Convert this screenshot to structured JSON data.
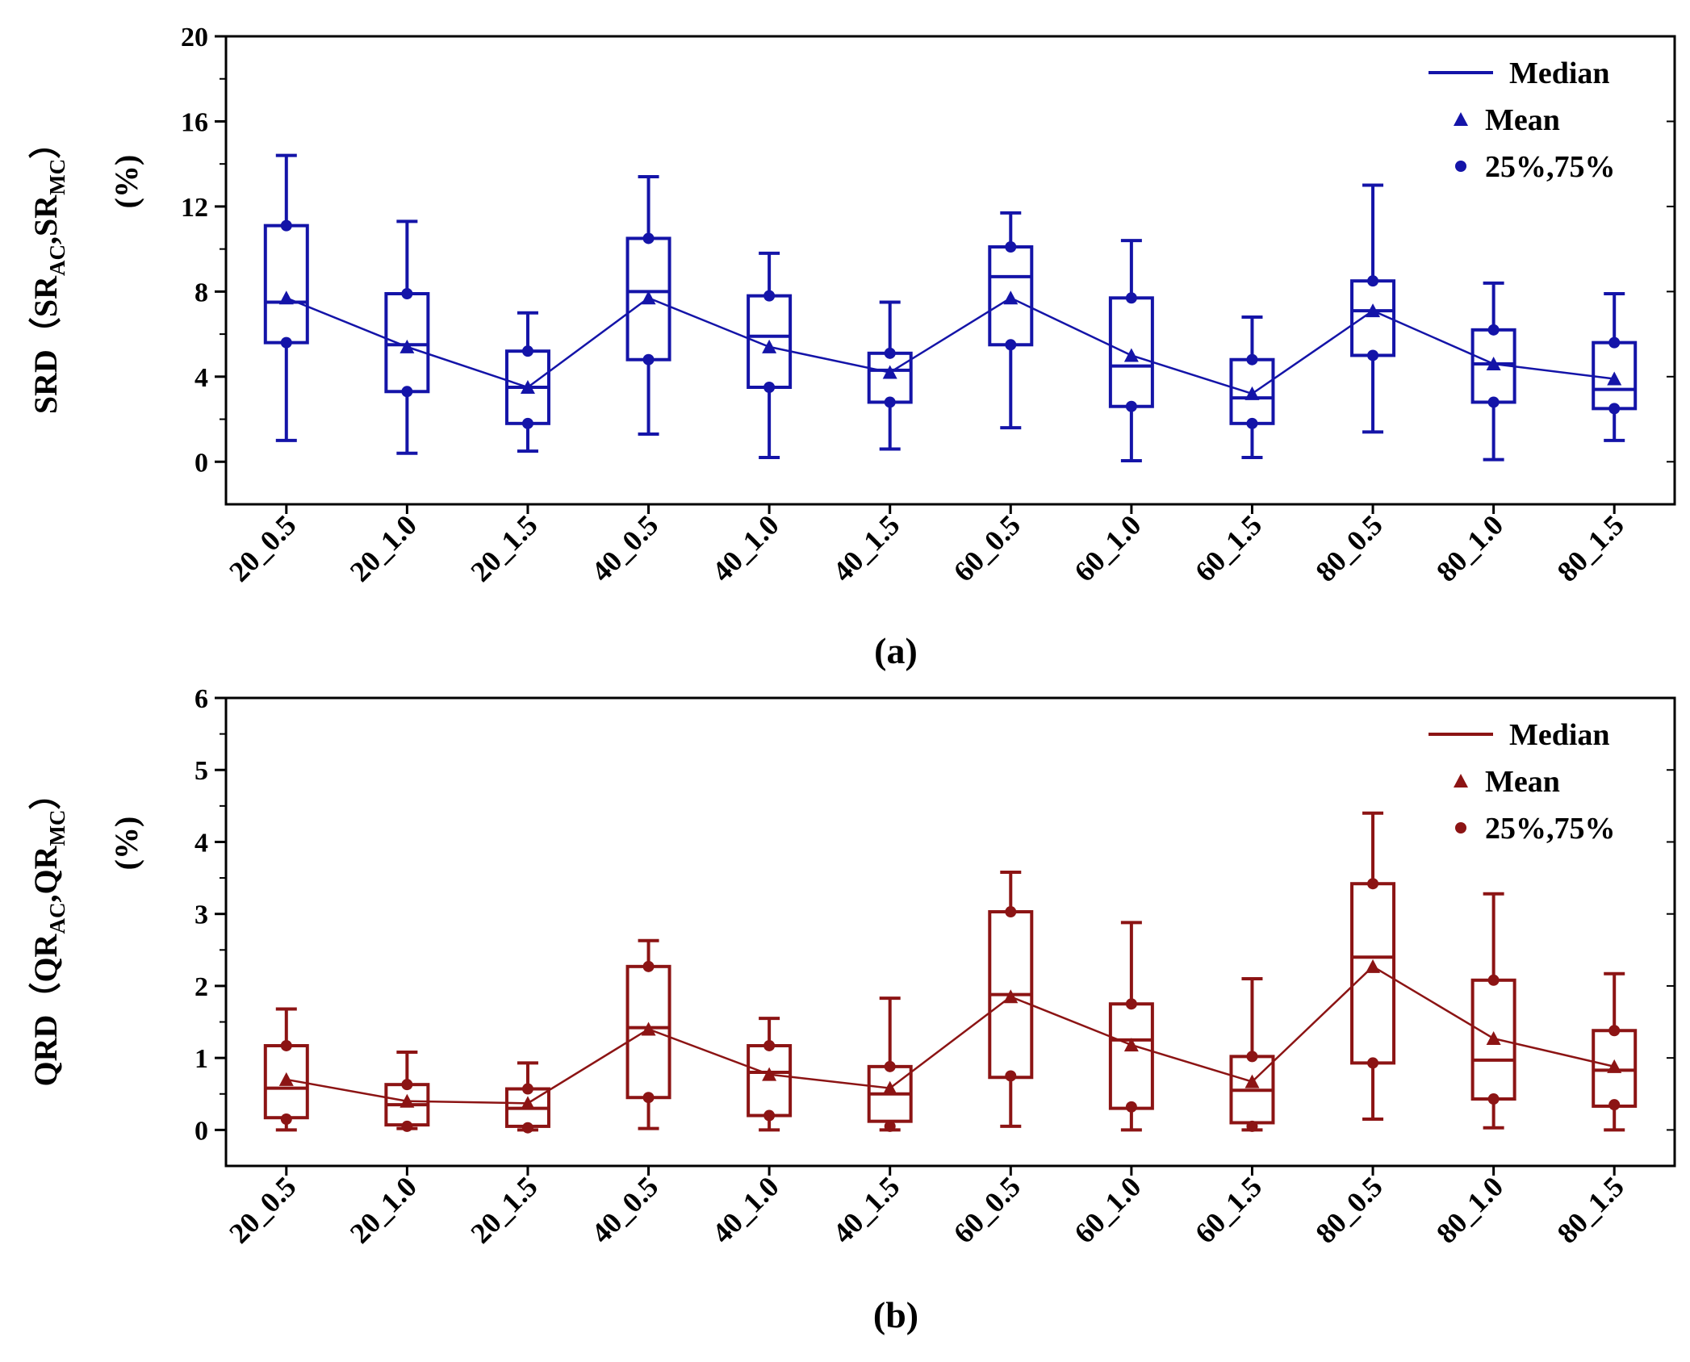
{
  "chart_data": [
    {
      "type": "box",
      "panel_label": "(a)",
      "ylabel_prefix": "SRD（SR",
      "ylabel_sub1": "AC",
      "ylabel_comma": ",SR",
      "ylabel_sub2": "MC",
      "ylabel_close": "）",
      "ylabel_unit": "(%)",
      "ylim": [
        -2,
        20
      ],
      "yticks": [
        0,
        4,
        8,
        12,
        16,
        20
      ],
      "ytick_labels": [
        "0",
        "4",
        "8",
        "12",
        "16",
        "20"
      ],
      "color": "#1414a8",
      "categories": [
        "20_0.5",
        "20_1.0",
        "20_1.5",
        "40_0.5",
        "40_1.0",
        "40_1.5",
        "60_0.5",
        "60_1.0",
        "60_1.5",
        "80_0.5",
        "80_1.0",
        "80_1.5"
      ],
      "whisker_min": [
        1.0,
        0.4,
        0.5,
        1.3,
        0.2,
        0.6,
        1.6,
        0.05,
        0.2,
        1.4,
        0.1,
        1.0
      ],
      "q1": [
        5.6,
        3.3,
        1.8,
        4.8,
        3.5,
        2.8,
        5.5,
        2.6,
        1.8,
        5.0,
        2.8,
        2.5
      ],
      "median": [
        7.5,
        5.5,
        3.5,
        8.0,
        5.9,
        4.3,
        8.7,
        4.5,
        3.0,
        7.1,
        4.6,
        3.4
      ],
      "q3": [
        11.1,
        7.9,
        5.2,
        10.5,
        7.8,
        5.1,
        10.1,
        7.7,
        4.8,
        8.5,
        6.2,
        5.6
      ],
      "whisker_max": [
        14.4,
        11.3,
        7.0,
        13.4,
        9.8,
        7.5,
        11.7,
        10.4,
        6.8,
        13.0,
        8.4,
        7.9
      ],
      "p25_marker": [
        5.6,
        3.3,
        1.8,
        4.8,
        3.5,
        2.8,
        5.5,
        2.6,
        1.8,
        5.0,
        2.8,
        2.5
      ],
      "p75_marker": [
        11.1,
        7.9,
        5.2,
        10.5,
        7.8,
        5.1,
        10.1,
        7.7,
        4.8,
        8.5,
        6.2,
        5.6
      ],
      "mean": [
        7.7,
        5.4,
        3.5,
        7.7,
        5.4,
        4.2,
        7.7,
        5.0,
        3.2,
        7.1,
        4.6,
        3.9
      ],
      "legend": {
        "position": "top-right",
        "entries": [
          "Median",
          "Mean",
          "25%,75%"
        ]
      }
    },
    {
      "type": "box",
      "panel_label": "(b)",
      "ylabel_prefix": "QRD（QR",
      "ylabel_sub1": "AC",
      "ylabel_comma": ",QR",
      "ylabel_sub2": "MC",
      "ylabel_close": "）",
      "ylabel_unit": "(%)",
      "ylim": [
        -0.5,
        6
      ],
      "yticks": [
        0,
        1,
        2,
        3,
        4,
        5,
        6
      ],
      "ytick_labels": [
        "0",
        "1",
        "2",
        "3",
        "4",
        "5",
        "6"
      ],
      "color": "#8c1414",
      "categories": [
        "20_0.5",
        "20_1.0",
        "20_1.5",
        "40_0.5",
        "40_1.0",
        "40_1.5",
        "60_0.5",
        "60_1.0",
        "60_1.5",
        "80_0.5",
        "80_1.0",
        "80_1.5"
      ],
      "whisker_min": [
        0.0,
        0.02,
        0.0,
        0.02,
        0.0,
        0.0,
        0.05,
        0.0,
        0.0,
        0.15,
        0.03,
        0.0
      ],
      "q1": [
        0.17,
        0.07,
        0.05,
        0.45,
        0.2,
        0.12,
        0.73,
        0.3,
        0.1,
        0.93,
        0.43,
        0.33
      ],
      "median": [
        0.58,
        0.35,
        0.3,
        1.42,
        0.8,
        0.5,
        1.88,
        1.25,
        0.55,
        2.4,
        0.97,
        0.83
      ],
      "q3": [
        1.17,
        0.63,
        0.57,
        2.27,
        1.17,
        0.88,
        3.03,
        1.75,
        1.02,
        3.42,
        2.08,
        1.38
      ],
      "whisker_max": [
        1.68,
        1.08,
        0.93,
        2.63,
        1.55,
        1.83,
        3.58,
        2.88,
        2.1,
        4.4,
        3.28,
        2.17
      ],
      "p25_marker": [
        0.15,
        0.05,
        0.03,
        0.45,
        0.2,
        0.05,
        0.75,
        0.32,
        0.05,
        0.93,
        0.43,
        0.35
      ],
      "p75_marker": [
        1.17,
        0.63,
        0.57,
        2.27,
        1.17,
        0.88,
        3.03,
        1.75,
        1.02,
        3.42,
        2.08,
        1.38
      ],
      "mean": [
        0.7,
        0.4,
        0.37,
        1.4,
        0.77,
        0.58,
        1.85,
        1.18,
        0.67,
        2.27,
        1.27,
        0.88
      ],
      "legend": {
        "position": "top-right",
        "entries": [
          "Median",
          "Mean",
          "25%,75%"
        ]
      }
    }
  ]
}
